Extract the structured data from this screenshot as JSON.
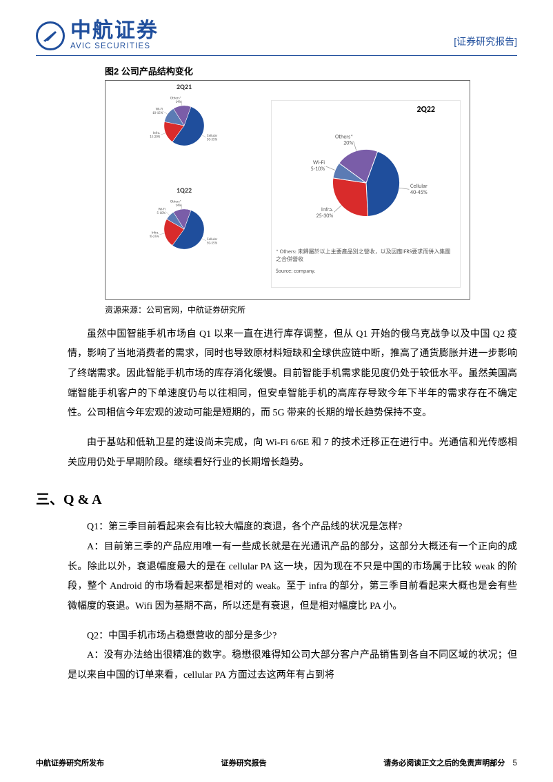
{
  "header": {
    "logo_cn": "中航证券",
    "logo_en": "AVIC SECURITIES",
    "right_label": "[证券研究报告]"
  },
  "figure": {
    "title": "图2  公司产品结构变化",
    "source": "资源来源：公司官网，中航证券研究所",
    "colors": {
      "cellular": "#1f4e9c",
      "infra": "#d92b2b",
      "wifi": "#5b7bb4",
      "others": "#7a5da8",
      "line": "#444444"
    },
    "pie_2q21": {
      "title": "2Q21",
      "slices": [
        {
          "label": "Cellular\n50-55%",
          "value": 52.5,
          "color": "#1f4e9c"
        },
        {
          "label": "Infra.\n15-20%",
          "value": 17.5,
          "color": "#d92b2b"
        },
        {
          "label": "Wi-Fi\n10-15%",
          "value": 12.5,
          "color": "#5b7bb4"
        },
        {
          "label": "Others*\n14%",
          "value": 14,
          "color": "#7a5da8"
        }
      ]
    },
    "pie_1q22": {
      "title": "1Q22",
      "slices": [
        {
          "label": "Cellular\n50-55%",
          "value": 52.5,
          "color": "#1f4e9c"
        },
        {
          "label": "Infra.\n20-25%",
          "value": 22.5,
          "color": "#d92b2b"
        },
        {
          "label": "Wi-Fi\n5-10%",
          "value": 7.5,
          "color": "#5b7bb4"
        },
        {
          "label": "Others*\n14%",
          "value": 14,
          "color": "#7a5da8"
        }
      ]
    },
    "pie_2q22": {
      "title": "2Q22",
      "slices": [
        {
          "label": "Cellular\n40-45%",
          "value": 42.5,
          "color": "#1f4e9c"
        },
        {
          "label": "Infra.\n25-30%",
          "value": 27.5,
          "color": "#d92b2b"
        },
        {
          "label": "Wi-Fi\n5-10%",
          "value": 7.5,
          "color": "#5b7bb4"
        },
        {
          "label": "Others*\n20%",
          "value": 20,
          "color": "#7a5da8"
        }
      ]
    },
    "footnote1": "* Others: 未歸屬於以上主要產品別之營收，以及因應IFRS要求而併入集團之合併營收",
    "footnote2": "Source: company."
  },
  "paragraphs": {
    "p1": "虽然中国智能手机市场自 Q1 以来一直在进行库存调整，但从 Q1 开始的俄乌克战争以及中国 Q2 疫情，影响了当地消费者的需求，同时也导致原材料短缺和全球供应链中断，推高了通货膨胀并进一步影响了终端需求。因此智能手机市场的库存消化缓慢。目前智能手机需求能见度仍处于较低水平。虽然美国高端智能手机客户的下单速度仍与以往相同，但安卓智能手机的高库存导致今年下半年的需求存在不确定性。公司相信今年宏观的波动可能是短期的，而 5G 带来的长期的增长趋势保持不变。",
    "p2": "由于基站和低轨卫星的建设尚未完成，向 Wi-Fi 6/6E 和 7 的技术迁移正在进行中。光通信和光传感相关应用仍处于早期阶段。继续看好行业的长期增长趋势。"
  },
  "section3": {
    "title": "三、Q & A",
    "q1": "Q1：第三季目前看起来会有比较大幅度的衰退，各个产品线的状况是怎样?",
    "a1": "A：目前第三季的产品应用唯一有一些成长就是在光通讯产品的部分，这部分大概还有一个正向的成长。除此以外，衰退幅度最大的是在 cellular PA 这一块，因为现在不只是中国的市场属于比较 weak 的阶段，整个 Android 的市场看起来都是相对的 weak。至于 infra 的部分，第三季目前看起来大概也是会有些微幅度的衰退。Wifi 因为基期不高，所以还是有衰退，但是相对幅度比 PA 小。",
    "q2": "Q2：中国手机市场占稳懋营收的部分是多少?",
    "a2": "A：没有办法给出很精准的数字。稳懋很难得知公司大部分客户产品销售到各自不同区域的状况；但是以来自中国的订单来看，cellular PA 方面过去这两年有占到将"
  },
  "footer": {
    "left": "中航证券研究所发布",
    "mid": "证券研究报告",
    "right": "请务必阅读正文之后的免责声明部分",
    "page": "5"
  }
}
